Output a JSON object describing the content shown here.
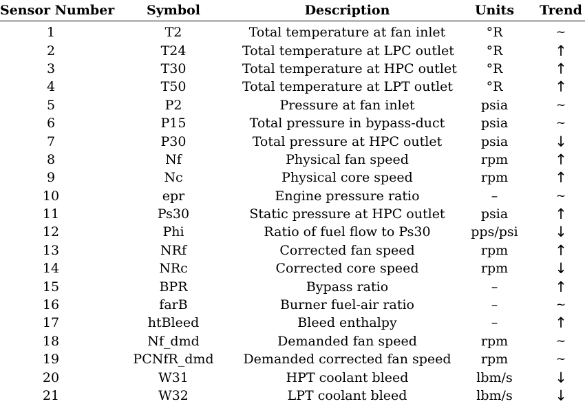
{
  "table": {
    "headers": {
      "sensor_number": "Sensor Number",
      "symbol": "Symbol",
      "description": "Description",
      "units": "Units",
      "trend": "Trend"
    },
    "rows": [
      {
        "num": "1",
        "symbol": "T2",
        "description": "Total temperature at fan inlet",
        "units": "°R",
        "trend": "~"
      },
      {
        "num": "2",
        "symbol": "T24",
        "description": "Total temperature at LPC outlet",
        "units": "°R",
        "trend": "↑"
      },
      {
        "num": "3",
        "symbol": "T30",
        "description": "Total temperature at HPC outlet",
        "units": "°R",
        "trend": "↑"
      },
      {
        "num": "4",
        "symbol": "T50",
        "description": "Total temperature at LPT outlet",
        "units": "°R",
        "trend": "↑"
      },
      {
        "num": "5",
        "symbol": "P2",
        "description": "Pressure at fan inlet",
        "units": "psia",
        "trend": "~"
      },
      {
        "num": "6",
        "symbol": "P15",
        "description": "Total pressure in bypass-duct",
        "units": "psia",
        "trend": "~"
      },
      {
        "num": "7",
        "symbol": "P30",
        "description": "Total pressure at HPC outlet",
        "units": "psia",
        "trend": "↓"
      },
      {
        "num": "8",
        "symbol": "Nf",
        "description": "Physical fan speed",
        "units": "rpm",
        "trend": "↑"
      },
      {
        "num": "9",
        "symbol": "Nc",
        "description": "Physical core speed",
        "units": "rpm",
        "trend": "↑"
      },
      {
        "num": "10",
        "symbol": "epr",
        "description": "Engine pressure ratio",
        "units": "–",
        "trend": "~"
      },
      {
        "num": "11",
        "symbol": "Ps30",
        "description": "Static pressure at HPC outlet",
        "units": "psia",
        "trend": "↑"
      },
      {
        "num": "12",
        "symbol": "Phi",
        "description": "Ratio of fuel flow to Ps30",
        "units": "pps/psi",
        "trend": "↓"
      },
      {
        "num": "13",
        "symbol": "NRf",
        "description": "Corrected fan speed",
        "units": "rpm",
        "trend": "↑"
      },
      {
        "num": "14",
        "symbol": "NRc",
        "description": "Corrected core speed",
        "units": "rpm",
        "trend": "↓"
      },
      {
        "num": "15",
        "symbol": "BPR",
        "description": "Bypass ratio",
        "units": "–",
        "trend": "↑"
      },
      {
        "num": "16",
        "symbol": "farB",
        "description": "Burner fuel-air ratio",
        "units": "–",
        "trend": "~"
      },
      {
        "num": "17",
        "symbol": "htBleed",
        "description": "Bleed enthalpy",
        "units": "–",
        "trend": "↑"
      },
      {
        "num": "18",
        "symbol": "Nf_dmd",
        "description": "Demanded fan speed",
        "units": "rpm",
        "trend": "~"
      },
      {
        "num": "19",
        "symbol": "PCNfR_dmd",
        "description": "Demanded corrected fan speed",
        "units": "rpm",
        "trend": "~"
      },
      {
        "num": "20",
        "symbol": "W31",
        "description": "HPT coolant bleed",
        "units": "lbm/s",
        "trend": "↓"
      },
      {
        "num": "21",
        "symbol": "W32",
        "description": "LPT coolant bleed",
        "units": "lbm/s",
        "trend": "↓"
      }
    ]
  }
}
